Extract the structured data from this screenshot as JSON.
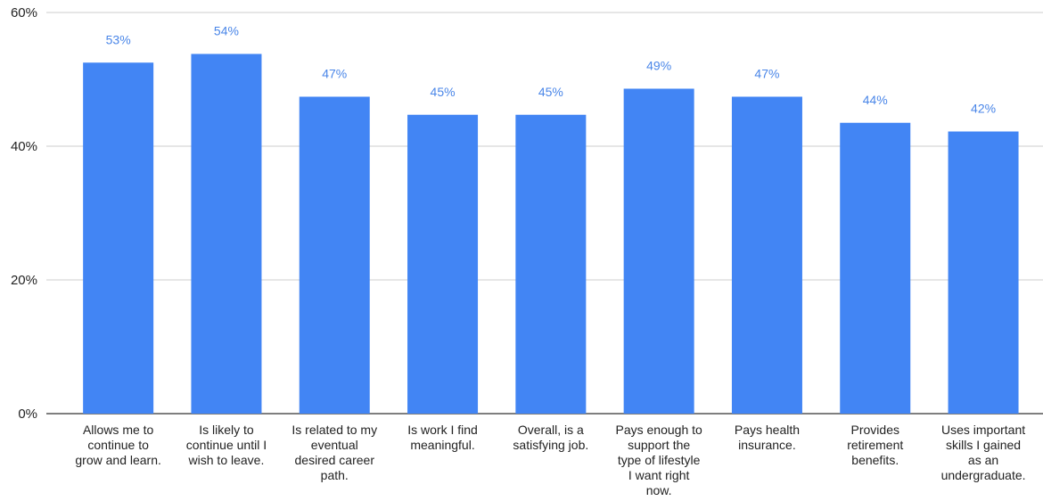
{
  "chart_data": {
    "type": "bar",
    "title": "",
    "xlabel": "",
    "ylabel": "",
    "ylim": [
      0,
      60
    ],
    "yticks": [
      0,
      20,
      40,
      60
    ],
    "ytick_labels": [
      "0%",
      "20%",
      "40%",
      "60%"
    ],
    "grid": true,
    "legend": "none",
    "bar_color": "#4285f4",
    "label_color": "#4a86e8",
    "gridline_color": "#cccccc",
    "categories": [
      [
        "Allows me to",
        "continue to",
        "grow and learn."
      ],
      [
        "Is likely to",
        "continue until I",
        "wish to leave."
      ],
      [
        "Is related to my",
        "eventual",
        "desired career",
        "path."
      ],
      [
        "Is work I find",
        "meaningful."
      ],
      [
        "Overall, is a",
        "satisfying job."
      ],
      [
        "Pays enough to",
        "support the",
        "type of lifestyle",
        "I want right",
        "now."
      ],
      [
        "Pays health",
        "insurance."
      ],
      [
        "Provides",
        "retirement",
        "benefits."
      ],
      [
        "Uses important",
        "skills I gained",
        "as an",
        "undergraduate."
      ]
    ],
    "values": [
      52.5,
      53.8,
      47.4,
      44.7,
      44.7,
      48.6,
      47.4,
      43.5,
      42.2
    ],
    "data_labels": [
      "53%",
      "54%",
      "47%",
      "45%",
      "45%",
      "49%",
      "47%",
      "44%",
      "42%"
    ]
  }
}
